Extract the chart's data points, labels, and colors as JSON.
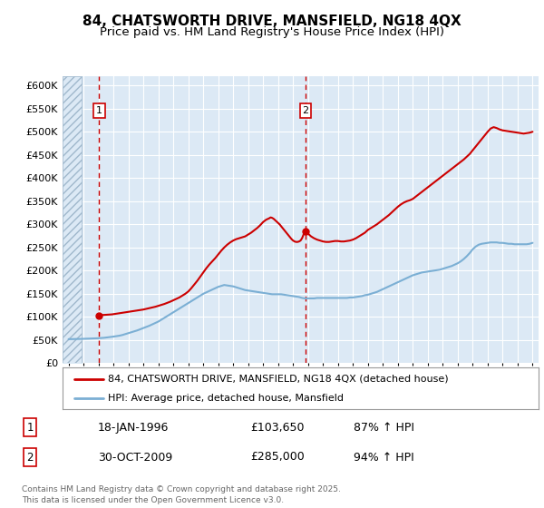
{
  "title": "84, CHATSWORTH DRIVE, MANSFIELD, NG18 4QX",
  "subtitle": "Price paid vs. HM Land Registry's House Price Index (HPI)",
  "title_fontsize": 11,
  "subtitle_fontsize": 9.5,
  "background_color": "#ffffff",
  "plot_bg_color": "#dce9f5",
  "hatch_color": "#b8ccd8",
  "ylim": [
    0,
    620000
  ],
  "yticks": [
    0,
    50000,
    100000,
    150000,
    200000,
    250000,
    300000,
    350000,
    400000,
    450000,
    500000,
    550000,
    600000
  ],
  "ytick_labels": [
    "£0",
    "£50K",
    "£100K",
    "£150K",
    "£200K",
    "£250K",
    "£300K",
    "£350K",
    "£400K",
    "£450K",
    "£500K",
    "£550K",
    "£600K"
  ],
  "xlim_start": 1993.6,
  "xlim_end": 2025.4,
  "grid_color": "#ffffff",
  "red_color": "#cc0000",
  "blue_color": "#7bafd4",
  "marker1_date": 1996.05,
  "marker1_price": 103650,
  "marker1_label": "1",
  "marker2_date": 2009.83,
  "marker2_price": 285000,
  "marker2_label": "2",
  "legend_line1": "84, CHATSWORTH DRIVE, MANSFIELD, NG18 4QX (detached house)",
  "legend_line2": "HPI: Average price, detached house, Mansfield",
  "annot1_date": "18-JAN-1996",
  "annot1_price": "£103,650",
  "annot1_hpi": "87% ↑ HPI",
  "annot2_date": "30-OCT-2009",
  "annot2_price": "£285,000",
  "annot2_hpi": "94% ↑ HPI",
  "footer": "Contains HM Land Registry data © Crown copyright and database right 2025.\nThis data is licensed under the Open Government Licence v3.0.",
  "red_line_x": [
    1996.05,
    1996.1,
    1996.2,
    1996.3,
    1996.4,
    1996.5,
    1996.6,
    1996.7,
    1996.8,
    1996.9,
    1997.0,
    1997.1,
    1997.2,
    1997.3,
    1997.4,
    1997.5,
    1997.6,
    1997.7,
    1997.8,
    1997.9,
    1998.0,
    1998.1,
    1998.2,
    1998.3,
    1998.4,
    1998.5,
    1998.6,
    1998.8,
    1999.0,
    1999.2,
    1999.4,
    1999.6,
    1999.8,
    2000.0,
    2000.2,
    2000.4,
    2000.6,
    2000.8,
    2001.0,
    2001.2,
    2001.4,
    2001.6,
    2001.8,
    2002.0,
    2002.2,
    2002.4,
    2002.6,
    2002.8,
    2003.0,
    2003.2,
    2003.4,
    2003.6,
    2003.8,
    2004.0,
    2004.2,
    2004.4,
    2004.6,
    2004.8,
    2005.0,
    2005.2,
    2005.4,
    2005.6,
    2005.8,
    2006.0,
    2006.2,
    2006.4,
    2006.6,
    2006.8,
    2007.0,
    2007.2,
    2007.4,
    2007.5,
    2007.6,
    2007.7,
    2007.8,
    2007.9,
    2008.0,
    2008.1,
    2008.2,
    2008.3,
    2008.4,
    2008.5,
    2008.6,
    2008.7,
    2008.8,
    2008.9,
    2009.0,
    2009.1,
    2009.2,
    2009.3,
    2009.4,
    2009.5,
    2009.6,
    2009.7,
    2009.83,
    2010.0,
    2010.2,
    2010.4,
    2010.6,
    2010.8,
    2011.0,
    2011.2,
    2011.4,
    2011.6,
    2011.8,
    2012.0,
    2012.2,
    2012.4,
    2012.6,
    2012.8,
    2013.0,
    2013.2,
    2013.4,
    2013.6,
    2013.8,
    2014.0,
    2014.2,
    2014.4,
    2014.6,
    2014.8,
    2015.0,
    2015.2,
    2015.4,
    2015.6,
    2015.8,
    2016.0,
    2016.2,
    2016.4,
    2016.6,
    2016.8,
    2017.0,
    2017.2,
    2017.4,
    2017.6,
    2017.8,
    2018.0,
    2018.2,
    2018.4,
    2018.6,
    2018.8,
    2019.0,
    2019.2,
    2019.4,
    2019.6,
    2019.8,
    2020.0,
    2020.2,
    2020.4,
    2020.6,
    2020.8,
    2021.0,
    2021.2,
    2021.4,
    2021.6,
    2021.8,
    2022.0,
    2022.2,
    2022.4,
    2022.6,
    2022.8,
    2023.0,
    2023.2,
    2023.4,
    2023.6,
    2023.8,
    2024.0,
    2024.2,
    2024.4,
    2024.6,
    2024.8,
    2025.0
  ],
  "red_line_y": [
    103650,
    103800,
    104000,
    104200,
    104400,
    104600,
    104800,
    105000,
    105200,
    105500,
    106000,
    106500,
    107000,
    107500,
    108000,
    108500,
    109000,
    109500,
    110000,
    110500,
    111000,
    111500,
    112000,
    112500,
    113000,
    113500,
    114000,
    115000,
    116000,
    117500,
    119000,
    120500,
    122000,
    124000,
    126000,
    128000,
    130500,
    133000,
    136000,
    139000,
    142000,
    146000,
    150000,
    155000,
    162000,
    170000,
    178000,
    187000,
    196000,
    205000,
    213000,
    220000,
    227000,
    235000,
    243000,
    250000,
    256000,
    261000,
    265000,
    268000,
    270000,
    272000,
    274000,
    278000,
    282000,
    287000,
    292000,
    298000,
    305000,
    310000,
    313000,
    315000,
    314000,
    312000,
    309000,
    306000,
    303000,
    300000,
    296000,
    292000,
    288000,
    284000,
    280000,
    276000,
    272000,
    268000,
    265000,
    263000,
    262000,
    262000,
    263000,
    265000,
    270000,
    278000,
    285000,
    280000,
    274000,
    270000,
    267000,
    265000,
    263000,
    262000,
    262000,
    263000,
    264000,
    264000,
    263000,
    263000,
    264000,
    265000,
    267000,
    270000,
    274000,
    278000,
    282000,
    288000,
    292000,
    296000,
    300000,
    305000,
    310000,
    315000,
    320000,
    326000,
    332000,
    338000,
    343000,
    347000,
    350000,
    352000,
    355000,
    360000,
    365000,
    370000,
    375000,
    380000,
    385000,
    390000,
    395000,
    400000,
    405000,
    410000,
    415000,
    420000,
    425000,
    430000,
    435000,
    440000,
    446000,
    452000,
    460000,
    468000,
    476000,
    484000,
    492000,
    500000,
    507000,
    510000,
    508000,
    505000,
    503000,
    502000,
    501000,
    500000,
    499000,
    498000,
    497000,
    496000,
    497000,
    498000,
    500000
  ],
  "blue_line_x": [
    1994.0,
    1994.2,
    1994.4,
    1994.6,
    1994.8,
    1995.0,
    1995.2,
    1995.4,
    1995.6,
    1995.8,
    1996.0,
    1996.2,
    1996.4,
    1996.6,
    1996.8,
    1997.0,
    1997.2,
    1997.4,
    1997.6,
    1997.8,
    1998.0,
    1998.2,
    1998.4,
    1998.6,
    1998.8,
    1999.0,
    1999.2,
    1999.4,
    1999.6,
    1999.8,
    2000.0,
    2000.2,
    2000.4,
    2000.6,
    2000.8,
    2001.0,
    2001.2,
    2001.4,
    2001.6,
    2001.8,
    2002.0,
    2002.2,
    2002.4,
    2002.6,
    2002.8,
    2003.0,
    2003.2,
    2003.4,
    2003.6,
    2003.8,
    2004.0,
    2004.2,
    2004.4,
    2004.6,
    2004.8,
    2005.0,
    2005.2,
    2005.4,
    2005.6,
    2005.8,
    2006.0,
    2006.2,
    2006.4,
    2006.6,
    2006.8,
    2007.0,
    2007.2,
    2007.4,
    2007.6,
    2007.8,
    2008.0,
    2008.2,
    2008.4,
    2008.6,
    2008.8,
    2009.0,
    2009.2,
    2009.4,
    2009.6,
    2009.8,
    2010.0,
    2010.2,
    2010.4,
    2010.6,
    2010.8,
    2011.0,
    2011.2,
    2011.4,
    2011.6,
    2011.8,
    2012.0,
    2012.2,
    2012.4,
    2012.6,
    2012.8,
    2013.0,
    2013.2,
    2013.4,
    2013.6,
    2013.8,
    2014.0,
    2014.2,
    2014.4,
    2014.6,
    2014.8,
    2015.0,
    2015.2,
    2015.4,
    2015.6,
    2015.8,
    2016.0,
    2016.2,
    2016.4,
    2016.6,
    2016.8,
    2017.0,
    2017.2,
    2017.4,
    2017.6,
    2017.8,
    2018.0,
    2018.2,
    2018.4,
    2018.6,
    2018.8,
    2019.0,
    2019.2,
    2019.4,
    2019.6,
    2019.8,
    2020.0,
    2020.2,
    2020.4,
    2020.6,
    2020.8,
    2021.0,
    2021.2,
    2021.4,
    2021.6,
    2021.8,
    2022.0,
    2022.2,
    2022.4,
    2022.6,
    2022.8,
    2023.0,
    2023.2,
    2023.4,
    2023.6,
    2023.8,
    2024.0,
    2024.2,
    2024.4,
    2024.6,
    2024.8,
    2025.0
  ],
  "blue_line_y": [
    52000,
    52100,
    52200,
    52300,
    52500,
    52800,
    53000,
    53200,
    53400,
    53700,
    54000,
    54500,
    55000,
    55800,
    56500,
    57500,
    58500,
    59500,
    61000,
    63000,
    65000,
    67000,
    69000,
    71000,
    73500,
    76000,
    78500,
    81000,
    84000,
    87000,
    90000,
    94000,
    98000,
    102000,
    106000,
    110000,
    114000,
    118000,
    122000,
    126000,
    130000,
    134000,
    138000,
    142000,
    146000,
    150000,
    153000,
    156000,
    159000,
    162000,
    165000,
    167000,
    169000,
    168000,
    167000,
    166000,
    164000,
    162000,
    160000,
    158000,
    157000,
    156000,
    155000,
    154000,
    153000,
    152000,
    151000,
    150000,
    149000,
    149000,
    149000,
    149000,
    148000,
    147000,
    146000,
    145000,
    144000,
    143000,
    141000,
    140000,
    140000,
    140000,
    140000,
    141000,
    141000,
    141000,
    141000,
    141000,
    141000,
    141000,
    141000,
    141000,
    141000,
    141000,
    142000,
    142000,
    143000,
    144000,
    145000,
    147000,
    148000,
    150000,
    152000,
    154000,
    157000,
    160000,
    163000,
    166000,
    169000,
    172000,
    175000,
    178000,
    181000,
    184000,
    187000,
    190000,
    192000,
    194000,
    196000,
    197000,
    198000,
    199000,
    200000,
    201000,
    202000,
    204000,
    206000,
    208000,
    210000,
    213000,
    216000,
    220000,
    225000,
    231000,
    238000,
    246000,
    252000,
    256000,
    258000,
    259000,
    260000,
    261000,
    261000,
    261000,
    260000,
    260000,
    259000,
    258000,
    258000,
    257000,
    257000,
    257000,
    257000,
    257000,
    258000,
    260000
  ]
}
